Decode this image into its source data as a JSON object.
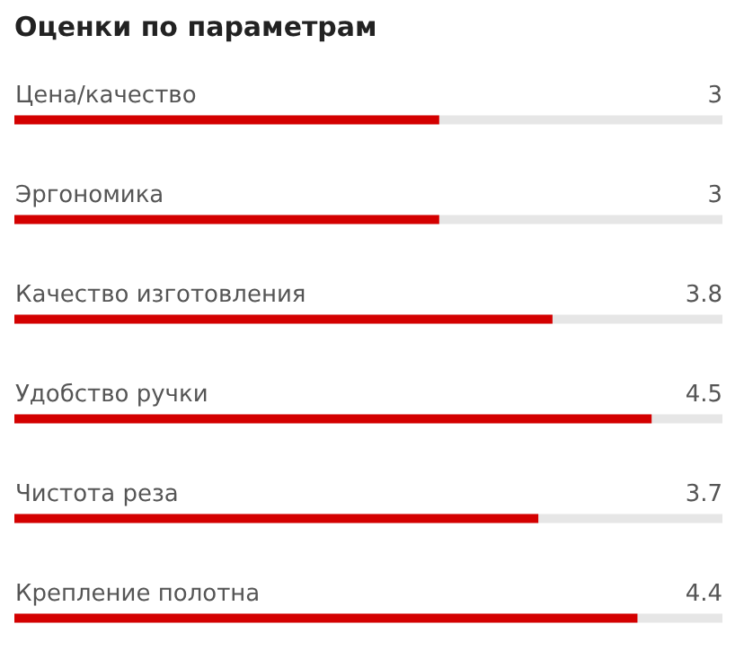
{
  "chart_data": {
    "type": "bar",
    "orientation": "horizontal",
    "title": "Оценки по параметрам",
    "categories": [
      "Цена/качество",
      "Эргономика",
      "Качество изготовления",
      "Удобство ручки",
      "Чистота реза",
      "Крепление полотна"
    ],
    "values": [
      3,
      3,
      3.8,
      4.5,
      3.7,
      4.4
    ],
    "color": "#d40000",
    "xlim": [
      0,
      5
    ],
    "data_labels": true,
    "tick_labels": "y",
    "grid": false
  }
}
